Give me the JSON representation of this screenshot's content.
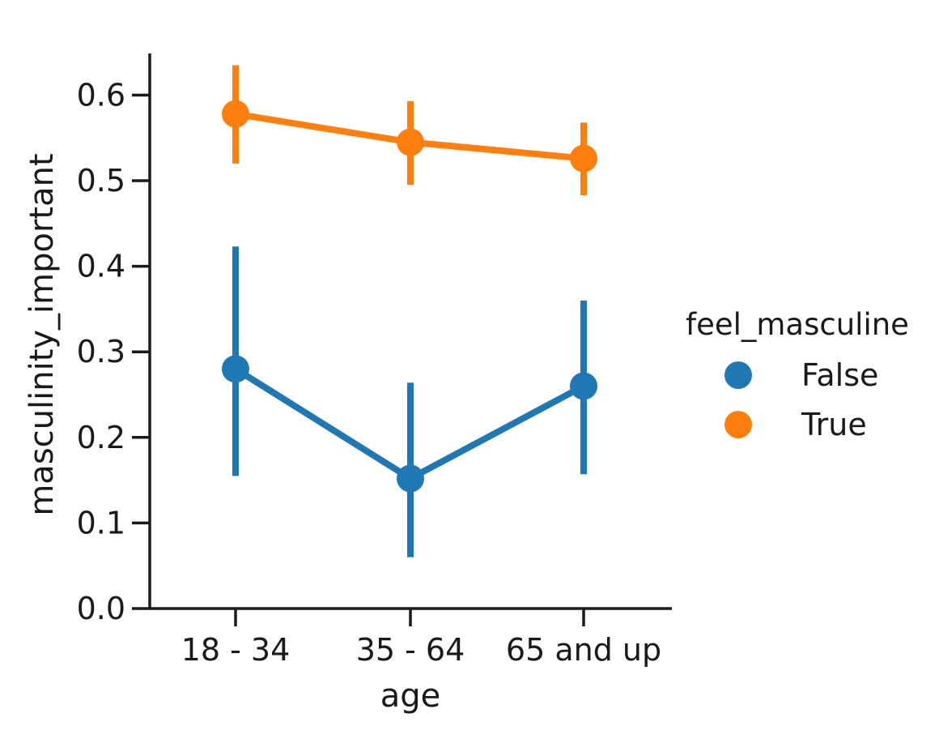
{
  "chart_data": {
    "type": "line",
    "title": "",
    "xlabel": "age",
    "ylabel": "masculinity_important",
    "categories": [
      "18 - 34",
      "35 - 64",
      "65 and up"
    ],
    "ylim": [
      0.0,
      0.65
    ],
    "yticks": [
      "0.0",
      "0.1",
      "0.2",
      "0.3",
      "0.4",
      "0.5",
      "0.6"
    ],
    "grid": false,
    "legend": {
      "title": "feel_masculine",
      "placement": "right"
    },
    "series": [
      {
        "name": "False",
        "color": "#1f77b4",
        "values": [
          0.28,
          0.152,
          0.26
        ],
        "ci_low": [
          0.155,
          0.06,
          0.157
        ],
        "ci_high": [
          0.423,
          0.264,
          0.36
        ]
      },
      {
        "name": "True",
        "color": "#ff7f0e",
        "values": [
          0.578,
          0.545,
          0.526
        ],
        "ci_low": [
          0.52,
          0.495,
          0.483
        ],
        "ci_high": [
          0.635,
          0.593,
          0.568
        ]
      }
    ]
  }
}
